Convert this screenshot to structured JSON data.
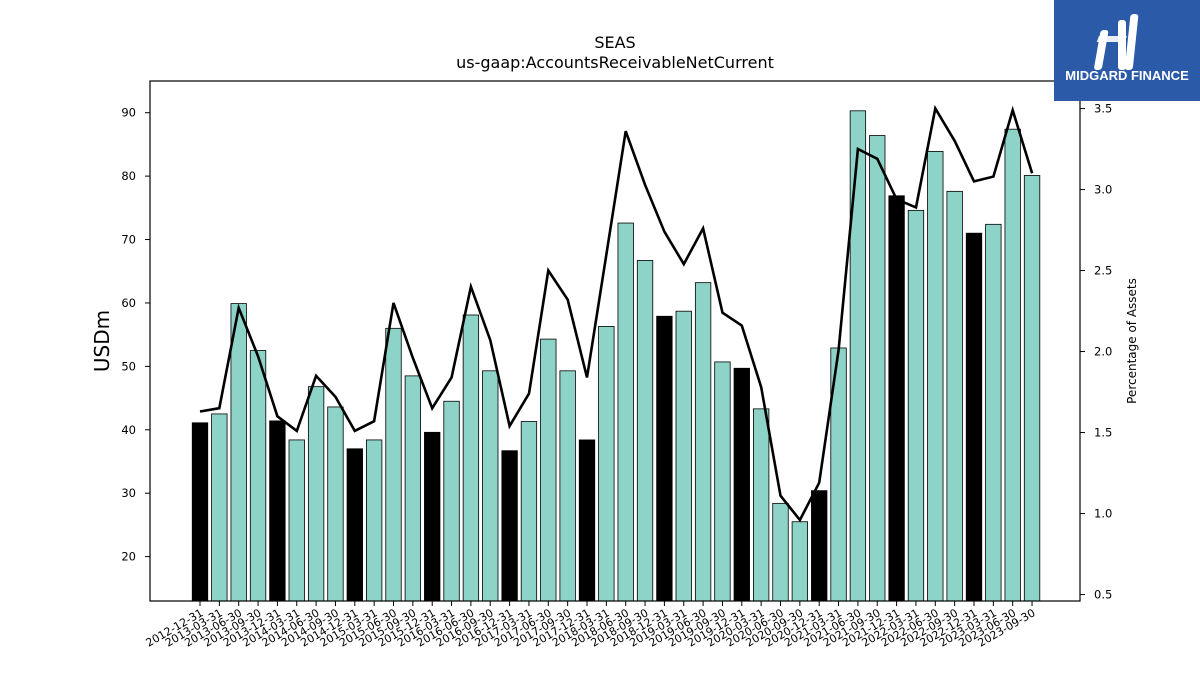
{
  "chart_data": {
    "type": "bar",
    "title": "SEAS",
    "subtitle": "us-gaap:AccountsReceivableNetCurrent",
    "ylabel": "USDm",
    "y2label": "Percentage of Assets",
    "ylim": [
      13,
      95
    ],
    "y2lim": [
      0.46,
      3.67
    ],
    "yticks": [
      20,
      30,
      40,
      50,
      60,
      70,
      80,
      90
    ],
    "y2ticks": [
      "0.5",
      "1.0",
      "1.5",
      "2.0",
      "2.5",
      "3.0",
      "3.5"
    ],
    "categories": [
      "2012-12-31",
      "2013-03-31",
      "2013-06-30",
      "2013-09-30",
      "2013-12-31",
      "2014-03-31",
      "2014-06-30",
      "2014-09-30",
      "2014-12-31",
      "2015-03-31",
      "2015-06-30",
      "2015-09-30",
      "2015-12-31",
      "2016-03-31",
      "2016-06-30",
      "2016-09-30",
      "2016-12-31",
      "2017-03-31",
      "2017-06-30",
      "2017-09-30",
      "2017-12-31",
      "2018-03-31",
      "2018-06-30",
      "2018-09-30",
      "2018-12-31",
      "2019-03-31",
      "2019-06-30",
      "2019-09-30",
      "2019-12-31",
      "2020-03-31",
      "2020-06-30",
      "2020-09-30",
      "2020-12-31",
      "2021-03-31",
      "2021-06-30",
      "2021-09-30",
      "2021-12-31",
      "2022-03-31",
      "2022-06-30",
      "2022-09-30",
      "2022-12-31",
      "2023-03-31",
      "2023-06-30",
      "2023-09-30"
    ],
    "series": [
      {
        "type": "bar",
        "values": [
          41.1,
          42.5,
          59.9,
          52.5,
          41.4,
          38.4,
          46.8,
          43.6,
          37.0,
          38.4,
          56.0,
          48.5,
          39.6,
          44.5,
          58.1,
          49.3,
          36.7,
          41.3,
          54.3,
          49.3,
          38.4,
          56.3,
          72.6,
          66.7,
          57.9,
          58.7,
          63.2,
          50.7,
          49.7,
          43.3,
          28.4,
          25.5,
          30.4,
          52.9,
          90.3,
          86.4,
          76.9,
          74.6,
          83.9,
          77.6,
          71.0,
          72.4,
          87.4,
          80.1
        ],
        "highlight": [
          true,
          false,
          false,
          false,
          true,
          false,
          false,
          false,
          true,
          false,
          false,
          false,
          true,
          false,
          false,
          false,
          true,
          false,
          false,
          false,
          true,
          false,
          false,
          false,
          true,
          false,
          false,
          false,
          true,
          false,
          false,
          false,
          true,
          false,
          false,
          false,
          true,
          false,
          false,
          false,
          true,
          false,
          false,
          false
        ],
        "color": "#8dd3c7",
        "highlight_color": "#000000"
      },
      {
        "type": "line",
        "axis": "right",
        "values": [
          1.63,
          1.65,
          2.27,
          1.97,
          1.6,
          1.51,
          1.85,
          1.72,
          1.51,
          1.57,
          2.3,
          1.96,
          1.65,
          1.84,
          2.4,
          2.07,
          1.54,
          1.74,
          2.5,
          2.32,
          1.84,
          2.6,
          3.36,
          3.03,
          2.74,
          2.54,
          2.76,
          2.24,
          2.16,
          1.78,
          1.11,
          0.96,
          1.19,
          2.01,
          3.25,
          3.19,
          2.94,
          2.89,
          3.5,
          3.3,
          3.05,
          3.08,
          3.49,
          3.1
        ],
        "color": "#000000"
      }
    ],
    "grid": false
  },
  "logo": {
    "text": "MIDGARD FINANCE"
  }
}
